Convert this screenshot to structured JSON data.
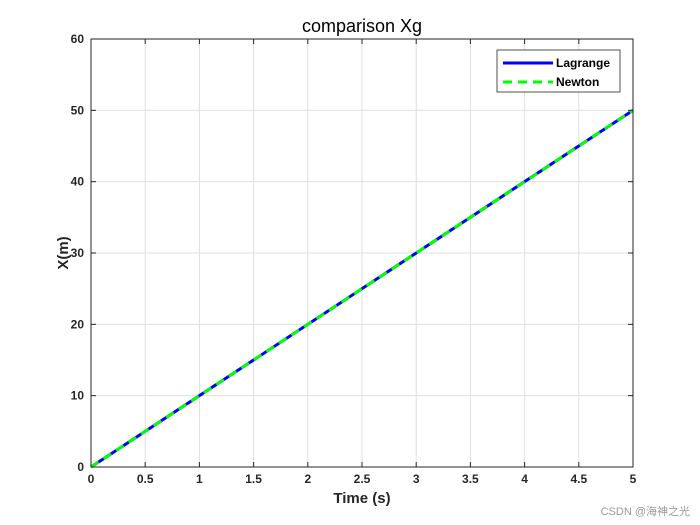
{
  "chart_data": {
    "type": "line",
    "title": "comparison Xg",
    "xlabel": "Time (s)",
    "ylabel": "X(m)",
    "xlim": [
      0,
      5
    ],
    "ylim": [
      0,
      60
    ],
    "xticks": [
      0,
      0.5,
      1,
      1.5,
      2,
      2.5,
      3,
      3.5,
      4,
      4.5,
      5
    ],
    "yticks": [
      0,
      10,
      20,
      30,
      40,
      50,
      60
    ],
    "grid": true,
    "legend_position": "top-right",
    "series": [
      {
        "name": "Lagrange",
        "color": "#0000ff",
        "style": "solid",
        "x": [
          0,
          5
        ],
        "y": [
          0,
          50
        ]
      },
      {
        "name": "Newton",
        "color": "#00ff00",
        "style": "dashed",
        "x": [
          0,
          5
        ],
        "y": [
          0,
          50
        ]
      }
    ]
  },
  "watermark": "CSDN @海神之光"
}
